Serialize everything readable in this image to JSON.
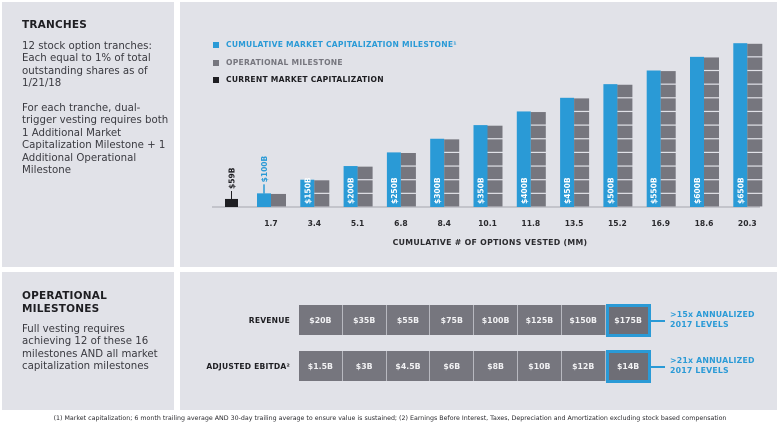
{
  "tranches_panel": {
    "heading": "TRANCHES",
    "paragraph1": "12 stock option tranches: Each equal to 1% of total outstanding shares as of 1/21/18",
    "paragraph2": "For each tranche, dual-trigger vesting requires both 1 Additional Market Capitalization Milestone + 1 Additional Operational Milestone"
  },
  "legend": [
    {
      "label": "CUMULATIVE MARKET CAPITALIZATION MILESTONE¹",
      "color": "#2a9ad6",
      "text_color": "#2a9ad6"
    },
    {
      "label": "OPERATIONAL MILESTONE",
      "color": "#76767e",
      "text_color": "#76767e"
    },
    {
      "label": "CURRENT MARKET CAPITALIZATION",
      "color": "#1e1e22",
      "text_color": "#1e1e22"
    }
  ],
  "chart_data": {
    "type": "bar",
    "title": "",
    "xlabel": "CUMULATIVE # OF OPTIONS VESTED (MM)",
    "ylabel": "",
    "categories": [
      "1.7",
      "3.4",
      "5.1",
      "6.8",
      "8.4",
      "10.1",
      "11.8",
      "13.5",
      "15.2",
      "16.9",
      "18.6",
      "20.3"
    ],
    "current": {
      "name": "CURRENT MARKET CAPITALIZATION",
      "label": "$59B",
      "value": 59
    },
    "series": [
      {
        "name": "CUMULATIVE MARKET CAPITALIZATION MILESTONE",
        "color": "#2a9ad6",
        "values": [
          100,
          150,
          200,
          250,
          300,
          350,
          400,
          450,
          500,
          550,
          600,
          650
        ],
        "labels": [
          "$100B",
          "$150B",
          "$200B",
          "$250B",
          "$300B",
          "$350B",
          "$400B",
          "$450B",
          "$500B",
          "$550B",
          "$600B",
          "$650B"
        ]
      },
      {
        "name": "OPERATIONAL MILESTONE",
        "color": "#76767e",
        "values": [
          1,
          2,
          3,
          4,
          5,
          6,
          7,
          8,
          9,
          10,
          11,
          12
        ]
      }
    ],
    "grid": false,
    "legend_position": "top-left"
  },
  "operational_panel": {
    "heading_line1": "OPERATIONAL",
    "heading_line2": "MILESTONES",
    "paragraph": "Full vesting requires achieving 12 of these 16 milestones AND all market capitalization milestones"
  },
  "milestones": {
    "revenue": {
      "label": "REVENUE",
      "values": [
        "$20B",
        "$35B",
        "$55B",
        "$75B",
        "$100B",
        "$125B",
        "$150B",
        "$175B"
      ],
      "annotation_line1": ">15x ANNUALIZED",
      "annotation_line2": "2017 LEVELS"
    },
    "ebitda": {
      "label": "ADJUSTED EBITDA²",
      "values": [
        "$1.5B",
        "$3B",
        "$4.5B",
        "$6B",
        "$8B",
        "$10B",
        "$12B",
        "$14B"
      ],
      "annotation_line1": ">21x ANNUALIZED",
      "annotation_line2": "2017 LEVELS"
    }
  },
  "footnote": "(1) Market capitalization; 6 month trailing average AND 30-day trailing average to ensure value is sustained; (2) Earnings Before Interest, Taxes, Depreciation and Amortization excluding stock based compensation"
}
